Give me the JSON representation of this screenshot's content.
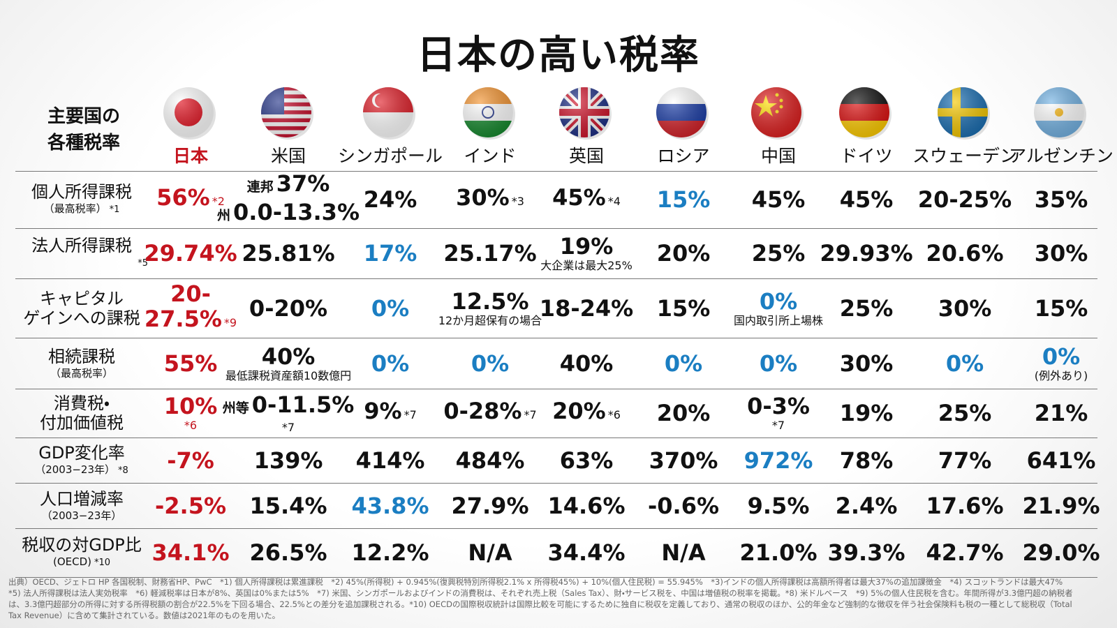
{
  "header": {
    "title": "日本の高い税率",
    "label": [
      "主要国の",
      "各種税率"
    ]
  },
  "colors": {
    "japan": "#c4141e",
    "highlight": "#1b7ec2",
    "text": "#111111"
  },
  "countries": [
    "日本",
    "米国",
    "シンガポール",
    "インド",
    "英国",
    "ロシア",
    "中国",
    "ドイツ",
    "スウェーデン",
    "アルゼンチン"
  ],
  "rows": [
    {
      "label": {
        "title": [
          "個人所得課税"
        ],
        "sub": "（最高税率）",
        "note": "*1"
      },
      "cells": [
        {
          "lines": [
            {
              "value": "56%",
              "note": "*2"
            }
          ]
        },
        {
          "lines": [
            {
              "prefix": "連邦",
              "value": "37%"
            },
            {
              "prefix": "州",
              "value": "0.0-13.3%"
            }
          ]
        },
        {
          "lines": [
            {
              "value": "24%"
            }
          ]
        },
        {
          "lines": [
            {
              "value": "30%",
              "note": "*3"
            }
          ]
        },
        {
          "lines": [
            {
              "value": "45%",
              "note": "*4"
            }
          ]
        },
        {
          "lines": [
            {
              "value": "15%"
            }
          ],
          "highlight": true
        },
        {
          "lines": [
            {
              "value": "45%"
            }
          ]
        },
        {
          "lines": [
            {
              "value": "45%"
            }
          ]
        },
        {
          "lines": [
            {
              "value": "20-25%"
            }
          ]
        },
        {
          "lines": [
            {
              "value": "35%"
            }
          ]
        }
      ]
    },
    {
      "label": {
        "title": [
          "法人所得課税"
        ],
        "note": "*5"
      },
      "cells": [
        {
          "lines": [
            {
              "value": "29.74%"
            }
          ]
        },
        {
          "lines": [
            {
              "value": "25.81%"
            }
          ]
        },
        {
          "lines": [
            {
              "value": "17%"
            }
          ],
          "highlight": true
        },
        {
          "lines": [
            {
              "value": "25.17%"
            }
          ]
        },
        {
          "lines": [
            {
              "value": "19%"
            }
          ],
          "sub": "大企業は最大25%"
        },
        {
          "lines": [
            {
              "value": "20%"
            }
          ]
        },
        {
          "lines": [
            {
              "value": "25%"
            }
          ]
        },
        {
          "lines": [
            {
              "value": "29.93%"
            }
          ]
        },
        {
          "lines": [
            {
              "value": "20.6%"
            }
          ]
        },
        {
          "lines": [
            {
              "value": "30%"
            }
          ]
        }
      ]
    },
    {
      "label": {
        "title": [
          "キャピタル",
          "ゲインへの課税"
        ]
      },
      "cells": [
        {
          "lines": [
            {
              "value": "20-"
            },
            {
              "value": "27.5%",
              "note": "*9"
            }
          ]
        },
        {
          "lines": [
            {
              "value": "0-20%"
            }
          ]
        },
        {
          "lines": [
            {
              "value": "0%"
            }
          ],
          "highlight": true
        },
        {
          "lines": [
            {
              "value": "12.5%"
            }
          ],
          "sub": "12か月超保有の場合"
        },
        {
          "lines": [
            {
              "value": "18-24%"
            }
          ]
        },
        {
          "lines": [
            {
              "value": "15%"
            }
          ]
        },
        {
          "lines": [
            {
              "value": "0%"
            }
          ],
          "sub": "国内取引所上場株",
          "highlight": true
        },
        {
          "lines": [
            {
              "value": "25%"
            }
          ]
        },
        {
          "lines": [
            {
              "value": "30%"
            }
          ]
        },
        {
          "lines": [
            {
              "value": "15%"
            }
          ]
        }
      ]
    },
    {
      "label": {
        "title": [
          "相続課税"
        ],
        "sub": "（最高税率）"
      },
      "cells": [
        {
          "lines": [
            {
              "value": "55%"
            }
          ]
        },
        {
          "lines": [
            {
              "value": "40%"
            }
          ],
          "sub": "最低課税資産額10数億円"
        },
        {
          "lines": [
            {
              "value": "0%"
            }
          ],
          "highlight": true
        },
        {
          "lines": [
            {
              "value": "0%"
            }
          ],
          "highlight": true
        },
        {
          "lines": [
            {
              "value": "40%"
            }
          ]
        },
        {
          "lines": [
            {
              "value": "0%"
            }
          ],
          "highlight": true
        },
        {
          "lines": [
            {
              "value": "0%"
            }
          ],
          "highlight": true
        },
        {
          "lines": [
            {
              "value": "30%"
            }
          ]
        },
        {
          "lines": [
            {
              "value": "0%"
            }
          ],
          "highlight": true
        },
        {
          "lines": [
            {
              "value": "0%"
            }
          ],
          "sub": "(例外あり)",
          "highlight": true
        }
      ]
    },
    {
      "label": {
        "title": [
          "消費税・",
          "付加価値税"
        ]
      },
      "cells": [
        {
          "lines": [
            {
              "value": "10%"
            }
          ],
          "sub": "*6"
        },
        {
          "lines": [
            {
              "prefix": "州等",
              "value": "0-11.5%"
            }
          ],
          "sub": "*7"
        },
        {
          "lines": [
            {
              "value": "9%",
              "note": "*7"
            }
          ]
        },
        {
          "lines": [
            {
              "value": "0-28%",
              "note": "*7"
            }
          ]
        },
        {
          "lines": [
            {
              "value": "20%",
              "note": "*6"
            }
          ]
        },
        {
          "lines": [
            {
              "value": "20%"
            }
          ]
        },
        {
          "lines": [
            {
              "value": "0-3%"
            }
          ],
          "sub": "*7"
        },
        {
          "lines": [
            {
              "value": "19%"
            }
          ]
        },
        {
          "lines": [
            {
              "value": "25%"
            }
          ]
        },
        {
          "lines": [
            {
              "value": "21%"
            }
          ]
        }
      ]
    },
    {
      "label": {
        "title": [
          "GDP変化率"
        ],
        "sub": "（2003−23年）",
        "note": "*8"
      },
      "cells": [
        {
          "lines": [
            {
              "value": "-7%"
            }
          ]
        },
        {
          "lines": [
            {
              "value": "139%"
            }
          ]
        },
        {
          "lines": [
            {
              "value": "414%"
            }
          ]
        },
        {
          "lines": [
            {
              "value": "484%"
            }
          ]
        },
        {
          "lines": [
            {
              "value": "63%"
            }
          ]
        },
        {
          "lines": [
            {
              "value": "370%"
            }
          ]
        },
        {
          "lines": [
            {
              "value": "972%"
            }
          ],
          "highlight": true
        },
        {
          "lines": [
            {
              "value": "78%"
            }
          ]
        },
        {
          "lines": [
            {
              "value": "77%"
            }
          ]
        },
        {
          "lines": [
            {
              "value": "641%"
            }
          ]
        }
      ]
    },
    {
      "label": {
        "title": [
          "人口増減率"
        ],
        "sub": "（2003−23年）"
      },
      "cells": [
        {
          "lines": [
            {
              "value": "-2.5%"
            }
          ]
        },
        {
          "lines": [
            {
              "value": "15.4%"
            }
          ]
        },
        {
          "lines": [
            {
              "value": "43.8%"
            }
          ],
          "highlight": true
        },
        {
          "lines": [
            {
              "value": "27.9%"
            }
          ]
        },
        {
          "lines": [
            {
              "value": "14.6%"
            }
          ]
        },
        {
          "lines": [
            {
              "value": "-0.6%"
            }
          ]
        },
        {
          "lines": [
            {
              "value": "9.5%"
            }
          ]
        },
        {
          "lines": [
            {
              "value": "2.4%"
            }
          ]
        },
        {
          "lines": [
            {
              "value": "17.6%"
            }
          ]
        },
        {
          "lines": [
            {
              "value": "21.9%"
            }
          ]
        }
      ]
    },
    {
      "label": {
        "title": [
          "税収の対GDP比"
        ],
        "sub": "(OECD)",
        "note": "*10"
      },
      "cells": [
        {
          "lines": [
            {
              "value": "34.1%"
            }
          ]
        },
        {
          "lines": [
            {
              "value": "26.5%"
            }
          ]
        },
        {
          "lines": [
            {
              "value": "12.2%"
            }
          ]
        },
        {
          "lines": [
            {
              "value": "N/A"
            }
          ]
        },
        {
          "lines": [
            {
              "value": "34.4%"
            }
          ]
        },
        {
          "lines": [
            {
              "value": "N/A"
            }
          ]
        },
        {
          "lines": [
            {
              "value": "21.0%"
            }
          ]
        },
        {
          "lines": [
            {
              "value": "39.3%"
            }
          ]
        },
        {
          "lines": [
            {
              "value": "42.7%"
            }
          ]
        },
        {
          "lines": [
            {
              "value": "29.0%"
            }
          ]
        }
      ]
    }
  ],
  "footnote": "出典）OECD、ジェトロ HP 各国税制、財務省HP、PwC　*1) 個人所得課税は累進課税　*2) 45%(所得税) + 0.945%(復興税特別所得税2.1% x 所得税45%) + 10%(個人住民税) = 55.945%　*3)インドの個人所得課税は高額所得者は最大37%の追加課徴金　*4) スコットランドは最大47%　*5) 法人所得課税は法人実効税率　*6) 軽減税率は日本が8%、英国は0%または5%　*7) 米国、シンガポールおよびインドの消費税は、それぞれ売上税（Sales Tax）、財・サービス税を、中国は増値税の税率を掲載。*8) 米ドルベース　*9) 5%の個人住民税を含む。年間所得が3.3億円超の納税者は、3.3億円超部分の所得に対する所得税額の割合が22.5%を下回る場合、22.5%との差分を追加課税される。*10) OECDの国際税収統計は国際比較を可能にするために独自に税収を定義しており、通常の税収のほか、公的年金など強制的な徴収を伴う社会保険料も税の一種として総税収（Total Tax Revenue）に含めて集計されている。数値は2021年のものを用いた。"
}
